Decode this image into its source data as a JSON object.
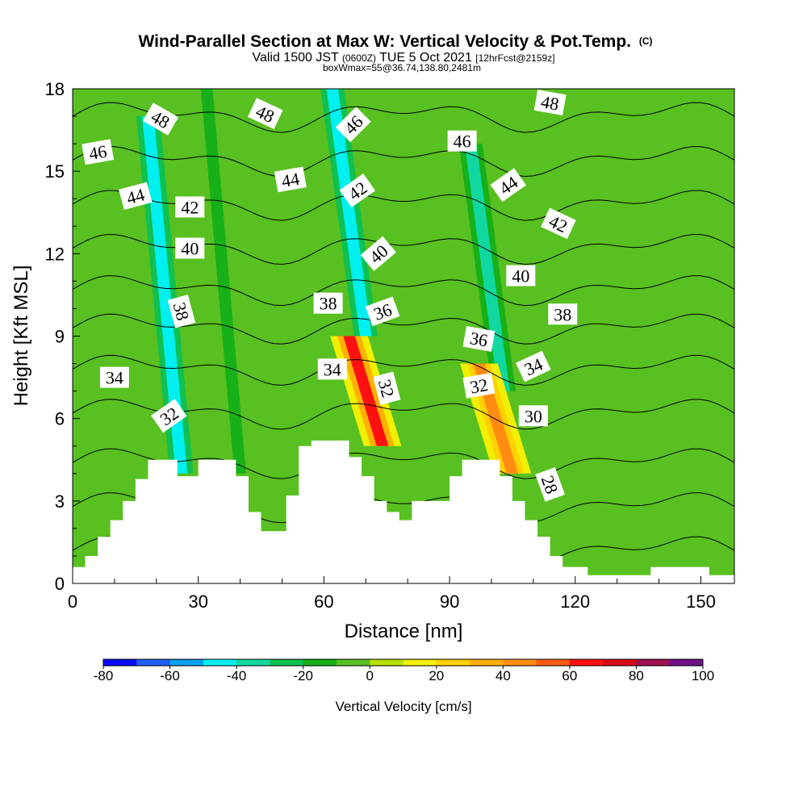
{
  "header": {
    "title_main": "Wind-Parallel Section at Max W: Vertical Velocity & Pot.Temp.",
    "title_mark": "(C)",
    "valid_prefix": "Valid 1500 JST",
    "valid_zone": "(0600Z)",
    "valid_date": "TUE 5 Oct 2021",
    "valid_fcst": "[12hrFcst@2159z]",
    "box_info": "boxWmax=55@36.74,138.80,2481m"
  },
  "chart_data": {
    "type": "heatmap",
    "title": "Wind-Parallel Section at Max W: Vertical Velocity & Pot.Temp.",
    "xlabel": "Distance [nm]",
    "ylabel": "Height [Kft MSL]",
    "xlim": [
      0,
      158
    ],
    "ylim": [
      0,
      18
    ],
    "x_ticks": [
      0,
      30,
      60,
      90,
      120,
      150
    ],
    "y_ticks": [
      0,
      3,
      6,
      9,
      12,
      15,
      18
    ],
    "x_tick_labels": [
      "0",
      "30",
      "60",
      "90",
      "120",
      "150"
    ],
    "y_tick_labels": [
      "0",
      "3",
      "6",
      "9",
      "12",
      "15",
      "18"
    ],
    "colorbar": {
      "label": "Vertical Velocity [cm/s]",
      "levels": [
        -80,
        -70,
        -60,
        -50,
        -40,
        -30,
        -20,
        -10,
        0,
        10,
        20,
        30,
        40,
        50,
        60,
        70,
        80,
        90,
        100
      ],
      "tick_labels": [
        "-80",
        "-60",
        "-40",
        "-20",
        "0",
        "20",
        "40",
        "60",
        "80",
        "100"
      ],
      "tick_values": [
        -80,
        -60,
        -40,
        -20,
        0,
        20,
        40,
        60,
        80,
        100
      ],
      "colors": [
        "#0a0aff",
        "#1f5fff",
        "#0aa0f0",
        "#00f0f0",
        "#10d8a0",
        "#10c050",
        "#18b018",
        "#58c020",
        "#b8e000",
        "#f0f000",
        "#ffd000",
        "#ffb000",
        "#ff8c10",
        "#ff5a10",
        "#ff1010",
        "#d80818",
        "#a01050",
        "#70108a"
      ]
    },
    "wind_bands": [
      {
        "x": 26,
        "w": -50,
        "height_range": [
          4,
          17
        ]
      },
      {
        "x": 40,
        "w": -20,
        "height_range": [
          4,
          18
        ]
      },
      {
        "x": 70,
        "w": -50,
        "height_range": [
          9,
          18
        ]
      },
      {
        "x": 74,
        "w": 60,
        "height_range": [
          5,
          9
        ]
      },
      {
        "x": 103,
        "w": -40,
        "height_range": [
          7,
          16
        ]
      },
      {
        "x": 105,
        "w": 40,
        "height_range": [
          4,
          8
        ]
      }
    ],
    "terrain": [
      [
        0,
        0.6
      ],
      [
        3,
        0.6
      ],
      [
        3,
        1.0
      ],
      [
        6,
        1.0
      ],
      [
        6,
        1.7
      ],
      [
        9,
        1.7
      ],
      [
        9,
        2.3
      ],
      [
        12,
        2.3
      ],
      [
        12,
        3.0
      ],
      [
        15,
        3.0
      ],
      [
        15,
        3.8
      ],
      [
        18,
        3.8
      ],
      [
        18,
        4.5
      ],
      [
        25,
        4.5
      ],
      [
        25,
        3.9
      ],
      [
        30,
        3.9
      ],
      [
        30,
        4.5
      ],
      [
        39,
        4.5
      ],
      [
        39,
        3.9
      ],
      [
        42,
        3.9
      ],
      [
        42,
        2.6
      ],
      [
        45,
        2.6
      ],
      [
        45,
        1.9
      ],
      [
        51,
        1.9
      ],
      [
        51,
        3.2
      ],
      [
        54,
        3.2
      ],
      [
        54,
        5.0
      ],
      [
        57,
        5.0
      ],
      [
        57,
        5.2
      ],
      [
        66,
        5.2
      ],
      [
        66,
        4.6
      ],
      [
        69,
        4.6
      ],
      [
        69,
        3.9
      ],
      [
        72,
        3.9
      ],
      [
        72,
        3.0
      ],
      [
        75,
        3.0
      ],
      [
        75,
        2.6
      ],
      [
        78,
        2.6
      ],
      [
        78,
        2.3
      ],
      [
        81,
        2.3
      ],
      [
        81,
        3.0
      ],
      [
        90,
        3.0
      ],
      [
        90,
        3.9
      ],
      [
        93,
        3.9
      ],
      [
        93,
        4.5
      ],
      [
        102,
        4.5
      ],
      [
        102,
        3.9
      ],
      [
        105,
        3.9
      ],
      [
        105,
        3.0
      ],
      [
        108,
        3.0
      ],
      [
        108,
        2.3
      ],
      [
        111,
        2.3
      ],
      [
        111,
        1.7
      ],
      [
        114,
        1.7
      ],
      [
        114,
        1.0
      ],
      [
        117,
        1.0
      ],
      [
        117,
        0.6
      ],
      [
        123,
        0.6
      ],
      [
        123,
        0.3
      ],
      [
        138,
        0.3
      ],
      [
        138,
        0.6
      ],
      [
        152,
        0.6
      ],
      [
        152,
        0.3
      ],
      [
        158,
        0.3
      ]
    ],
    "theta_contours": [
      {
        "value": 28,
        "base": 1.2
      },
      {
        "value": 30,
        "base": 2.8
      },
      {
        "value": 32,
        "base": 4.4
      },
      {
        "value": 34,
        "base": 6.2
      },
      {
        "value": 36,
        "base": 7.8
      },
      {
        "value": 38,
        "base": 9.3
      },
      {
        "value": 40,
        "base": 10.7
      },
      {
        "value": 42,
        "base": 12.2
      },
      {
        "value": 44,
        "base": 13.8
      },
      {
        "value": 46,
        "base": 15.4
      },
      {
        "value": 48,
        "base": 17.0
      }
    ],
    "contour_labels": [
      {
        "text": "46",
        "x": 6,
        "y": 15.7,
        "angle": 10
      },
      {
        "text": "48",
        "x": 21,
        "y": 16.9,
        "angle": -30
      },
      {
        "text": "48",
        "x": 46,
        "y": 17.1,
        "angle": -25
      },
      {
        "text": "46",
        "x": 67,
        "y": 16.7,
        "angle": 45
      },
      {
        "text": "46",
        "x": 93,
        "y": 16.1,
        "angle": 0
      },
      {
        "text": "48",
        "x": 114,
        "y": 17.5,
        "angle": -10
      },
      {
        "text": "44",
        "x": 15,
        "y": 14.1,
        "angle": 15
      },
      {
        "text": "44",
        "x": 52,
        "y": 14.7,
        "angle": 10
      },
      {
        "text": "42",
        "x": 28,
        "y": 13.7,
        "angle": 0
      },
      {
        "text": "42",
        "x": 68,
        "y": 14.3,
        "angle": 35
      },
      {
        "text": "44",
        "x": 104,
        "y": 14.5,
        "angle": 35
      },
      {
        "text": "42",
        "x": 116,
        "y": 13.1,
        "angle": -25
      },
      {
        "text": "40",
        "x": 28,
        "y": 12.2,
        "angle": 0
      },
      {
        "text": "40",
        "x": 73,
        "y": 12.0,
        "angle": 40
      },
      {
        "text": "40",
        "x": 107,
        "y": 11.2,
        "angle": 0
      },
      {
        "text": "38",
        "x": 26,
        "y": 9.9,
        "angle": -75
      },
      {
        "text": "38",
        "x": 61,
        "y": 10.2,
        "angle": 0
      },
      {
        "text": "36",
        "x": 74,
        "y": 9.9,
        "angle": 20
      },
      {
        "text": "38",
        "x": 117,
        "y": 9.8,
        "angle": 0
      },
      {
        "text": "36",
        "x": 97,
        "y": 8.9,
        "angle": -10
      },
      {
        "text": "34",
        "x": 10,
        "y": 7.5,
        "angle": 0
      },
      {
        "text": "34",
        "x": 62,
        "y": 7.8,
        "angle": 0
      },
      {
        "text": "32",
        "x": 75,
        "y": 7.1,
        "angle": -75
      },
      {
        "text": "32",
        "x": 97,
        "y": 7.2,
        "angle": 10
      },
      {
        "text": "34",
        "x": 110,
        "y": 7.9,
        "angle": 25
      },
      {
        "text": "32",
        "x": 23,
        "y": 6.1,
        "angle": 35
      },
      {
        "text": "30",
        "x": 110,
        "y": 6.1,
        "angle": 0
      },
      {
        "text": "28",
        "x": 114,
        "y": 3.6,
        "angle": -70
      }
    ]
  }
}
